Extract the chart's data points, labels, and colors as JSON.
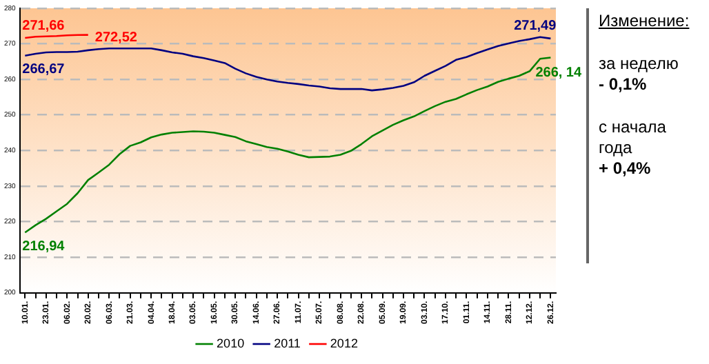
{
  "chart_data": {
    "type": "line",
    "categories": [
      "10.01.",
      null,
      "23.01.",
      null,
      "06.02.",
      null,
      "20.02.",
      null,
      "06.03.",
      null,
      "21.03.",
      null,
      "04.04.",
      null,
      "18.04.",
      null,
      "03.05.",
      null,
      "16.05.",
      null,
      "30.05.",
      null,
      "14.06.",
      null,
      "27.06.",
      null,
      "11.07.",
      null,
      "25.07.",
      null,
      "08.08.",
      null,
      "22.08.",
      null,
      "05.09.",
      null,
      "19.09.",
      null,
      "03.10.",
      null,
      "17.10.",
      null,
      "01.11.",
      null,
      "14.11.",
      null,
      "28.11.",
      null,
      "12.12.",
      null,
      "26.12."
    ],
    "series": [
      {
        "name": "2010",
        "color": "#008000",
        "values": [
          216.94,
          219.0,
          220.8,
          222.9,
          225.0,
          228.0,
          231.7,
          233.8,
          236.0,
          239.0,
          241.3,
          242.3,
          243.7,
          244.5,
          245.0,
          245.2,
          245.4,
          245.3,
          245.0,
          244.4,
          243.8,
          242.6,
          241.8,
          241.0,
          240.5,
          239.7,
          238.8,
          238.1,
          238.2,
          238.3,
          238.8,
          239.9,
          241.8,
          244.0,
          245.6,
          247.2,
          248.5,
          249.6,
          251.1,
          252.5,
          253.7,
          254.5,
          255.8,
          257.0,
          258.0,
          259.3,
          260.2,
          261.0,
          262.3,
          265.8,
          266.14
        ],
        "value_labels": [
          "216,94",
          null,
          null,
          null,
          null,
          null,
          null,
          null,
          null,
          null,
          null,
          null,
          null,
          null,
          null,
          null,
          null,
          null,
          null,
          null,
          null,
          null,
          null,
          null,
          null,
          null,
          null,
          null,
          null,
          null,
          null,
          null,
          null,
          null,
          null,
          null,
          null,
          null,
          null,
          null,
          null,
          null,
          null,
          null,
          null,
          null,
          null,
          null,
          null,
          null,
          "266, 14"
        ]
      },
      {
        "name": "2011",
        "color": "#000080",
        "values": [
          266.67,
          267.2,
          267.6,
          267.7,
          267.7,
          267.8,
          268.2,
          268.5,
          268.7,
          268.7,
          268.7,
          268.7,
          268.7,
          268.2,
          267.6,
          267.2,
          266.5,
          266.0,
          265.3,
          264.6,
          263.0,
          261.7,
          260.7,
          260.0,
          259.4,
          259.0,
          258.7,
          258.3,
          258.0,
          257.5,
          257.3,
          257.3,
          257.3,
          256.9,
          257.2,
          257.6,
          258.2,
          259.2,
          261.0,
          262.4,
          263.8,
          265.5,
          266.3,
          267.4,
          268.4,
          269.4,
          270.1,
          270.8,
          271.3,
          271.9,
          271.49
        ],
        "value_labels": [
          "266,67",
          null,
          null,
          null,
          null,
          null,
          null,
          null,
          null,
          null,
          null,
          null,
          null,
          null,
          null,
          null,
          null,
          null,
          null,
          null,
          null,
          null,
          null,
          null,
          null,
          null,
          null,
          null,
          null,
          null,
          null,
          null,
          null,
          null,
          null,
          null,
          null,
          null,
          null,
          null,
          null,
          null,
          null,
          null,
          null,
          null,
          null,
          null,
          null,
          null,
          "271,49"
        ]
      },
      {
        "name": "2012",
        "color": "#ff0000",
        "values": [
          271.66,
          272.0,
          272.1,
          272.2,
          272.4,
          272.5,
          272.52,
          null,
          null,
          null,
          null,
          null,
          null,
          null,
          null,
          null,
          null,
          null,
          null,
          null,
          null,
          null,
          null,
          null,
          null,
          null,
          null,
          null,
          null,
          null,
          null,
          null,
          null,
          null,
          null,
          null,
          null,
          null,
          null,
          null,
          null,
          null,
          null,
          null,
          null,
          null,
          null,
          null,
          null,
          null,
          null
        ],
        "value_labels": [
          "271,66",
          null,
          null,
          null,
          null,
          null,
          "272,52",
          null,
          null,
          null,
          null,
          null,
          null,
          null,
          null,
          null,
          null,
          null,
          null,
          null,
          null,
          null,
          null,
          null,
          null,
          null,
          null,
          null,
          null,
          null,
          null,
          null,
          null,
          null,
          null,
          null,
          null,
          null,
          null,
          null,
          null,
          null,
          null,
          null,
          null,
          null,
          null,
          null,
          null,
          null,
          null
        ]
      }
    ],
    "ylim": [
      200,
      280
    ],
    "yticks": [
      200,
      210,
      220,
      230,
      240,
      250,
      260,
      270,
      280
    ],
    "grid": "y",
    "legend": "bottom",
    "marker": "none",
    "line_style": "solid",
    "annotations": [
      "Изменение:",
      "за неделю",
      "- 0,1%",
      "с начала года",
      "+ 0,4%"
    ]
  }
}
